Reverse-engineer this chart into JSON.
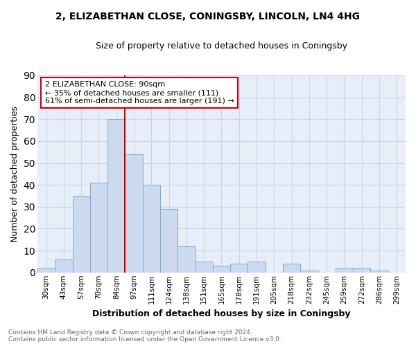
{
  "title1": "2, ELIZABETHAN CLOSE, CONINGSBY, LINCOLN, LN4 4HG",
  "title2": "Size of property relative to detached houses in Coningsby",
  "xlabel": "Distribution of detached houses by size in Coningsby",
  "ylabel": "Number of detached properties",
  "categories": [
    "30sqm",
    "43sqm",
    "57sqm",
    "70sqm",
    "84sqm",
    "97sqm",
    "111sqm",
    "124sqm",
    "138sqm",
    "151sqm",
    "165sqm",
    "178sqm",
    "191sqm",
    "205sqm",
    "218sqm",
    "232sqm",
    "245sqm",
    "259sqm",
    "272sqm",
    "286sqm",
    "299sqm"
  ],
  "values": [
    2,
    6,
    35,
    41,
    70,
    54,
    40,
    29,
    12,
    5,
    3,
    4,
    5,
    0,
    4,
    1,
    0,
    2,
    2,
    1,
    0
  ],
  "bar_color": "#ccd9ee",
  "bar_edge_color": "#7badd4",
  "vline_x_index": 5,
  "vline_color": "#cc0000",
  "annotation_text": "2 ELIZABETHAN CLOSE: 90sqm\n← 35% of detached houses are smaller (111)\n61% of semi-detached houses are larger (191) →",
  "annotation_box_color": "#ffffff",
  "annotation_box_edge": "#cc0000",
  "ylim": [
    0,
    90
  ],
  "yticks": [
    0,
    10,
    20,
    30,
    40,
    50,
    60,
    70,
    80,
    90
  ],
  "grid_color": "#c8d4e8",
  "plot_bg_color": "#e8eef8",
  "fig_bg_color": "#ffffff",
  "footnote": "Contains HM Land Registry data © Crown copyright and database right 2024.\nContains public sector information licensed under the Open Government Licence v3.0."
}
